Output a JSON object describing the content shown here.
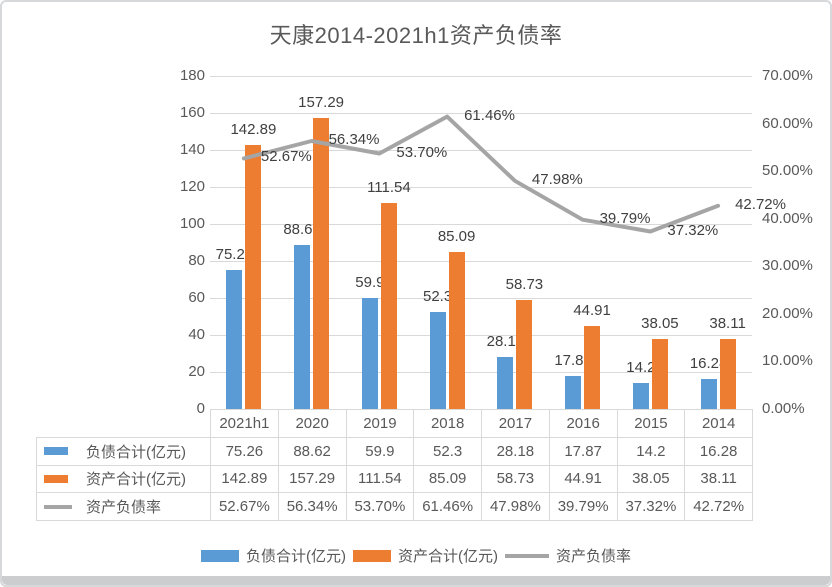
{
  "title": "天康2014-2021h1资产负债率",
  "colors": {
    "liabilities_bar": "#5B9BD5",
    "assets_bar": "#ED7D31",
    "ratio_line": "#A5A5A5",
    "gridline": "#D9D9D9",
    "axis_text": "#595959",
    "data_label_text": "#404040",
    "table_border": "#D9D9D9"
  },
  "chart_data": {
    "type": "combo",
    "subtypes": [
      "bar",
      "bar",
      "line"
    ],
    "title": "天康2014-2021h1资产负债率",
    "categories": [
      "2021h1",
      "2020",
      "2019",
      "2018",
      "2017",
      "2016",
      "2015",
      "2014"
    ],
    "series": [
      {
        "name": "负债合计(亿元)",
        "type": "bar",
        "axis": "left",
        "color": "#5B9BD5",
        "values": [
          75.26,
          88.62,
          59.9,
          52.3,
          28.18,
          17.87,
          14.2,
          16.28
        ],
        "labels": [
          "75.26",
          "88.62",
          "59.9",
          "52.3",
          "28.18",
          "17.87",
          "14.2",
          "16.28"
        ]
      },
      {
        "name": "资产合计(亿元)",
        "type": "bar",
        "axis": "left",
        "color": "#ED7D31",
        "values": [
          142.89,
          157.29,
          111.54,
          85.09,
          58.73,
          44.91,
          38.05,
          38.11
        ],
        "labels": [
          "142.89",
          "157.29",
          "111.54",
          "85.09",
          "58.73",
          "44.91",
          "38.05",
          "38.11"
        ]
      },
      {
        "name": "资产负债率",
        "type": "line",
        "axis": "right",
        "color": "#A5A5A5",
        "values": [
          52.67,
          56.34,
          53.7,
          61.46,
          47.98,
          39.79,
          37.32,
          42.72
        ],
        "labels": [
          "52.67%",
          "56.34%",
          "53.70%",
          "61.46%",
          "47.98%",
          "39.79%",
          "37.32%",
          "42.72%"
        ]
      }
    ],
    "left_axis": {
      "min": 0,
      "max": 180,
      "step": 20,
      "ticks": [
        "0",
        "20",
        "40",
        "60",
        "80",
        "100",
        "120",
        "140",
        "160",
        "180"
      ]
    },
    "right_axis": {
      "min": 0,
      "max": 70,
      "step": 10,
      "ticks": [
        "0.00%",
        "10.00%",
        "20.00%",
        "30.00%",
        "40.00%",
        "50.00%",
        "60.00%",
        "70.00%"
      ]
    },
    "grid": true,
    "legend_position": "bottom",
    "show_data_table": true
  },
  "legend": {
    "items": [
      "负债合计(亿元)",
      "资产合计(亿元)",
      "资产负债率"
    ]
  }
}
